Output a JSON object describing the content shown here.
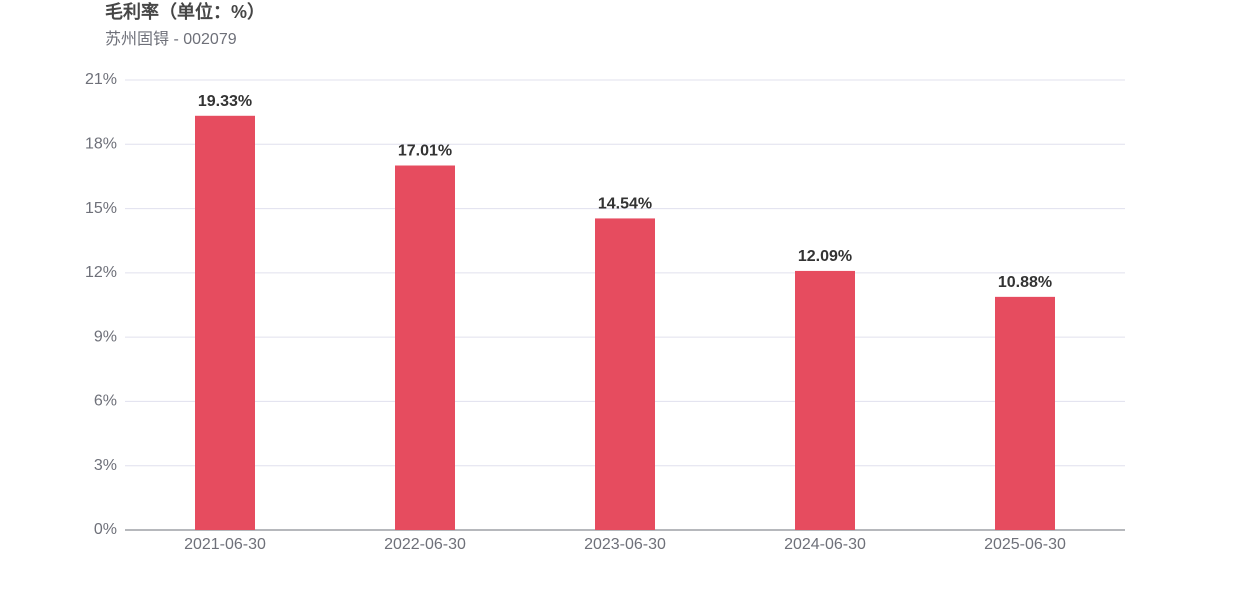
{
  "chart_data": {
    "type": "bar",
    "title": "毛利率（单位：%）",
    "subtitle": "苏州固锝 - 002079",
    "categories": [
      "2021-06-30",
      "2022-06-30",
      "2023-06-30",
      "2024-06-30",
      "2025-06-30"
    ],
    "values": [
      19.33,
      17.01,
      14.54,
      12.09,
      10.88
    ],
    "value_labels": [
      "19.33%",
      "17.01%",
      "14.54%",
      "12.09%",
      "10.88%"
    ],
    "color": "#e64c5f",
    "ylim": [
      0,
      21
    ],
    "yticks": [
      {
        "value": 0,
        "label": "0%"
      },
      {
        "value": 3,
        "label": "3%"
      },
      {
        "value": 6,
        "label": "6%"
      },
      {
        "value": 9,
        "label": "9%"
      },
      {
        "value": 12,
        "label": "12%"
      },
      {
        "value": 15,
        "label": "15%"
      },
      {
        "value": 18,
        "label": "18%"
      },
      {
        "value": 21,
        "label": "21%"
      }
    ],
    "grid": true
  }
}
